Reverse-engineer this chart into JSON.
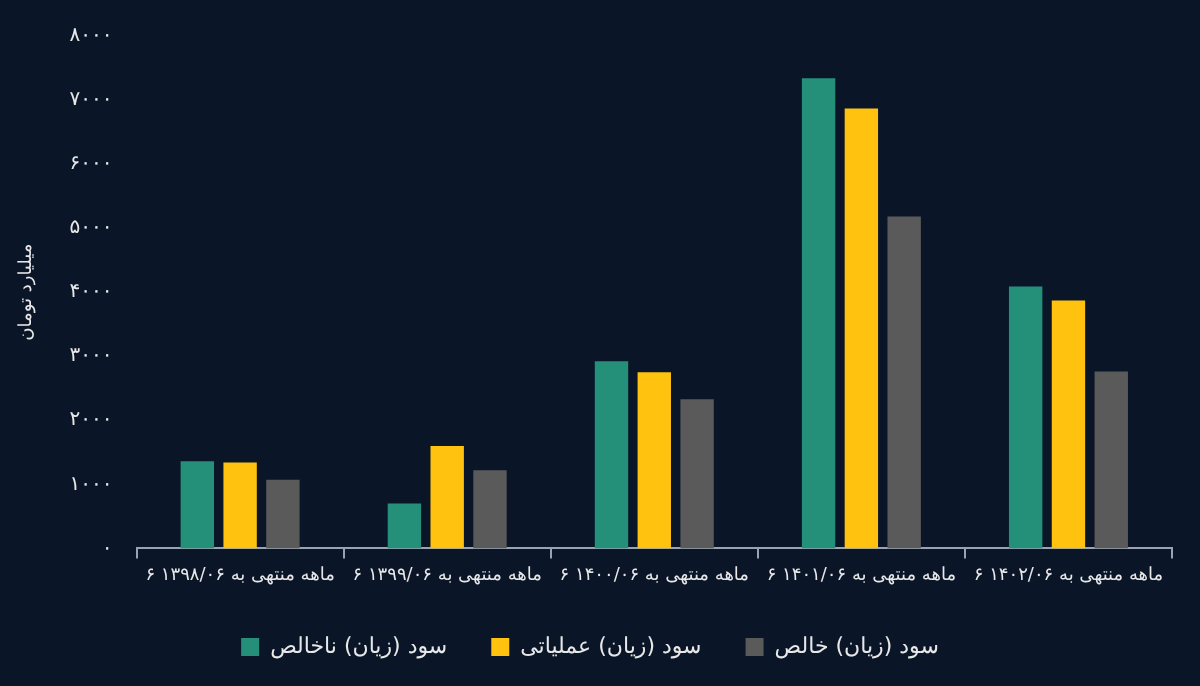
{
  "chart_data": {
    "type": "bar",
    "ylabel": "میلیارد تومان",
    "categories": [
      "۶ ماهه منتهی به ۱۳۹۸/۰۶",
      "۶ ماهه منتهی به ۱۳۹۹/۰۶",
      "۶ ماهه منتهی به ۱۴۰۰/۰۶",
      "۶ ماهه منتهی به ۱۴۰۱/۰۶",
      "۶ ماهه منتهی به ۱۴۰۲/۰۶"
    ],
    "series": [
      {
        "name": "سود (زیان) ناخالص",
        "color": "#25907a",
        "values": [
          1360,
          700,
          2920,
          7340,
          4090
        ]
      },
      {
        "name": "سود (زیان) عملیاتی",
        "color": "#ffc20e",
        "values": [
          1340,
          1600,
          2750,
          6870,
          3870
        ]
      },
      {
        "name": "سود (زیان) خالص",
        "color": "#5a5a5a",
        "values": [
          1070,
          1220,
          2330,
          5180,
          2760
        ]
      }
    ],
    "ylim": [
      0,
      8000
    ],
    "yticks": [
      {
        "value": 0,
        "label": "۰"
      },
      {
        "value": 1000,
        "label": "۱۰۰۰"
      },
      {
        "value": 2000,
        "label": "۲۰۰۰"
      },
      {
        "value": 3000,
        "label": "۳۰۰۰"
      },
      {
        "value": 4000,
        "label": "۴۰۰۰"
      },
      {
        "value": 5000,
        "label": "۵۰۰۰"
      },
      {
        "value": 6000,
        "label": "۶۰۰۰"
      },
      {
        "value": 7000,
        "label": "۷۰۰۰"
      },
      {
        "value": 8000,
        "label": "۸۰۰۰"
      }
    ],
    "grid": false,
    "legend": "bottom"
  }
}
